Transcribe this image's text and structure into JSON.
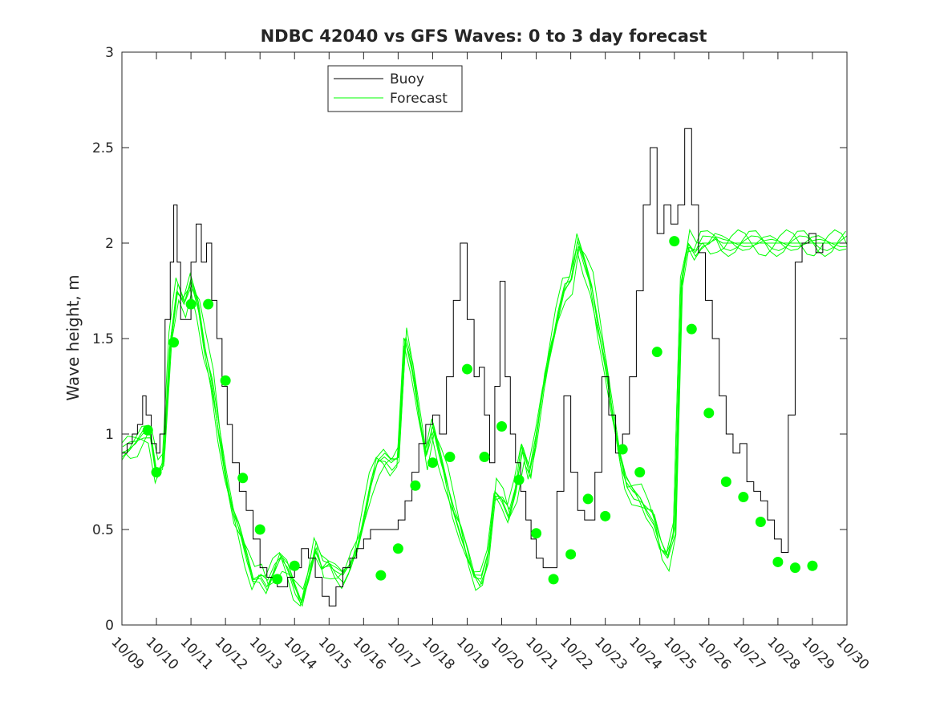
{
  "chart_data": {
    "type": "line",
    "title": "NDBC 42040 vs GFS Waves: 0 to 3 day forecast",
    "xlabel": "",
    "ylabel": "Wave height, m",
    "xlim": [
      0,
      21
    ],
    "ylim": [
      0,
      3
    ],
    "x_tick_labels": [
      "10/09",
      "10/10",
      "10/11",
      "10/12",
      "10/13",
      "10/14",
      "10/15",
      "10/16",
      "10/17",
      "10/18",
      "10/19",
      "10/20",
      "10/21",
      "10/22",
      "10/23",
      "10/24",
      "10/25",
      "10/26",
      "10/27",
      "10/28",
      "10/29",
      "10/30"
    ],
    "y_ticks": [
      0,
      0.5,
      1,
      1.5,
      2,
      2.5,
      3
    ],
    "y_tick_labels": [
      "0",
      "0.5",
      "1",
      "1.5",
      "2",
      "2.5",
      "3"
    ],
    "legend": {
      "position": "top-center",
      "entries": [
        "Buoy",
        "Forecast"
      ]
    },
    "colors": {
      "buoy": "#000000",
      "forecast": "#00ff00",
      "axes": "#262626"
    },
    "series": [
      {
        "name": "Buoy",
        "x": [
          0.0,
          0.15,
          0.3,
          0.45,
          0.6,
          0.7,
          0.85,
          1.0,
          1.1,
          1.25,
          1.4,
          1.5,
          1.6,
          1.7,
          1.85,
          2.0,
          2.15,
          2.3,
          2.45,
          2.6,
          2.75,
          2.9,
          3.05,
          3.2,
          3.4,
          3.6,
          3.8,
          4.0,
          4.2,
          4.5,
          4.8,
          5.0,
          5.2,
          5.4,
          5.6,
          5.8,
          6.0,
          6.2,
          6.4,
          6.6,
          6.8,
          7.0,
          7.2,
          7.4,
          7.6,
          7.8,
          8.0,
          8.2,
          8.4,
          8.6,
          8.8,
          9.0,
          9.2,
          9.4,
          9.6,
          9.8,
          10.0,
          10.2,
          10.35,
          10.5,
          10.65,
          10.8,
          10.95,
          11.1,
          11.25,
          11.4,
          11.55,
          11.7,
          11.85,
          12.0,
          12.2,
          12.4,
          12.6,
          12.8,
          13.0,
          13.2,
          13.4,
          13.55,
          13.7,
          13.9,
          14.1,
          14.3,
          14.5,
          14.7,
          14.9,
          15.1,
          15.3,
          15.5,
          15.7,
          15.9,
          16.1,
          16.3,
          16.5,
          16.7,
          16.9,
          17.1,
          17.3,
          17.5,
          17.7,
          17.9,
          18.1,
          18.3,
          18.5,
          18.7,
          18.9,
          19.1,
          19.3,
          19.5,
          19.7,
          19.9,
          20.1,
          20.3
        ],
        "values": [
          0.9,
          0.95,
          1.0,
          1.05,
          1.2,
          1.1,
          0.95,
          0.9,
          1.0,
          1.6,
          1.9,
          2.2,
          1.9,
          1.6,
          1.6,
          1.9,
          2.1,
          1.9,
          2.0,
          1.7,
          1.5,
          1.25,
          1.05,
          0.85,
          0.7,
          0.6,
          0.45,
          0.3,
          0.25,
          0.2,
          0.25,
          0.3,
          0.4,
          0.35,
          0.25,
          0.15,
          0.1,
          0.2,
          0.3,
          0.35,
          0.4,
          0.45,
          0.5,
          0.5,
          0.5,
          0.5,
          0.55,
          0.65,
          0.8,
          0.95,
          1.05,
          1.1,
          1.0,
          1.3,
          1.7,
          2.0,
          1.6,
          1.3,
          1.35,
          1.1,
          0.85,
          1.25,
          1.8,
          1.3,
          1.0,
          0.85,
          0.7,
          0.55,
          0.45,
          0.35,
          0.3,
          0.3,
          0.7,
          1.2,
          0.8,
          0.6,
          0.55,
          0.55,
          0.8,
          1.3,
          1.1,
          0.9,
          1.0,
          1.3,
          1.75,
          2.2,
          2.5,
          2.05,
          2.2,
          2.1,
          2.2,
          2.6,
          2.2,
          1.95,
          1.7,
          1.5,
          1.2,
          1.0,
          0.9,
          0.95,
          0.75,
          0.7,
          0.65,
          0.55,
          0.45,
          0.38,
          1.1,
          1.9,
          2.0,
          2.05,
          1.95,
          2.0
        ]
      },
      {
        "name": "Forecast",
        "x": [
          0.0,
          0.2,
          0.4,
          0.6,
          0.8,
          1.0,
          1.2,
          1.4,
          1.6,
          1.8,
          2.0,
          2.2,
          2.4,
          2.6,
          2.8,
          3.0,
          3.2,
          3.4,
          3.6,
          3.8,
          4.0,
          4.2,
          4.4,
          4.6,
          4.8,
          5.0,
          5.2,
          5.4,
          5.6,
          5.8,
          6.0,
          6.2,
          6.4,
          6.6,
          6.8,
          7.0,
          7.2,
          7.4,
          7.6,
          7.8,
          8.0,
          8.2,
          8.4,
          8.6,
          8.8,
          9.0,
          9.2,
          9.4,
          9.6,
          9.8,
          10.0,
          10.2,
          10.4,
          10.6,
          10.8,
          11.0,
          11.2,
          11.4,
          11.6,
          11.8,
          12.0,
          12.2,
          12.4,
          12.6,
          12.8,
          13.0,
          13.2,
          13.4,
          13.6,
          13.8,
          14.0,
          14.2,
          14.4,
          14.6,
          14.8,
          15.0,
          15.2,
          15.4,
          15.6,
          15.8,
          16.0,
          16.2,
          16.4,
          16.6,
          16.8,
          17.0,
          17.2,
          17.4,
          17.6,
          17.8,
          18.0,
          18.2,
          18.4,
          18.6,
          18.8,
          19.0,
          19.2,
          19.4,
          19.6,
          19.8,
          20.0,
          20.2,
          20.4,
          20.6,
          20.8,
          21.0
        ],
        "values": [
          0.9,
          0.92,
          0.95,
          1.0,
          1.02,
          0.8,
          0.85,
          1.48,
          1.75,
          1.68,
          1.8,
          1.68,
          1.45,
          1.28,
          1.0,
          0.77,
          0.6,
          0.5,
          0.37,
          0.24,
          0.26,
          0.2,
          0.28,
          0.35,
          0.3,
          0.2,
          0.12,
          0.25,
          0.4,
          0.3,
          0.31,
          0.28,
          0.26,
          0.32,
          0.4,
          0.55,
          0.73,
          0.85,
          0.88,
          0.85,
          0.88,
          1.5,
          1.34,
          1.1,
          0.88,
          1.04,
          0.9,
          0.76,
          0.6,
          0.48,
          0.36,
          0.25,
          0.24,
          0.37,
          0.7,
          0.66,
          0.57,
          0.7,
          0.92,
          0.8,
          1.0,
          1.25,
          1.43,
          1.6,
          1.75,
          1.8,
          2.01,
          1.9,
          1.78,
          1.55,
          1.35,
          1.11,
          0.9,
          0.75,
          0.7,
          0.67,
          0.6,
          0.54,
          0.4,
          0.35,
          0.5,
          1.8,
          2.0,
          1.95,
          2.0,
          2.0,
          2.02,
          2.0,
          2.0,
          2.0,
          2.0,
          2.0,
          2.0,
          2.0,
          2.0,
          2.0,
          2.0,
          2.0,
          2.0,
          2.0,
          2.0,
          2.0,
          2.0,
          2.0,
          2.0,
          2.0
        ]
      }
    ],
    "forecast_markers": {
      "x": [
        0.75,
        1.0,
        1.5,
        2.0,
        2.5,
        3.0,
        3.5,
        4.0,
        4.5,
        5.0,
        7.5,
        8.0,
        8.5,
        9.0,
        9.5,
        10.0,
        10.5,
        11.0,
        11.5,
        12.0,
        12.5,
        13.0,
        13.5,
        14.0,
        14.5,
        15.0,
        15.5,
        16.0,
        16.5,
        17.0,
        17.5,
        18.0,
        18.5,
        19.0,
        19.5,
        20.0
      ],
      "values": [
        1.02,
        0.8,
        1.48,
        1.68,
        1.68,
        1.28,
        0.77,
        0.5,
        0.24,
        0.31,
        0.26,
        0.4,
        0.73,
        0.85,
        0.88,
        1.34,
        0.88,
        1.04,
        0.76,
        0.48,
        0.24,
        0.37,
        0.66,
        0.57,
        0.92,
        0.8,
        1.43,
        2.01,
        1.55,
        1.11,
        0.75,
        0.67,
        0.54,
        0.33,
        0.3,
        0.31
      ]
    }
  }
}
